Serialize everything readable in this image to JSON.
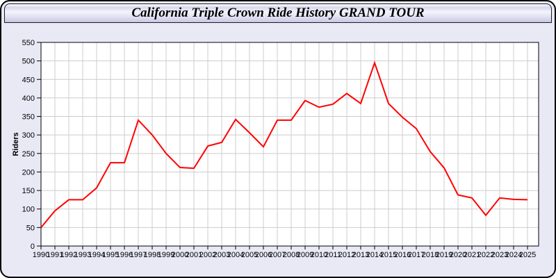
{
  "header": {
    "title": "California Triple Crown Ride History GRAND TOUR"
  },
  "colors": {
    "window_bg": "#E9E9F6",
    "window_border": "#000000",
    "plot_bg": "#FFFFFF",
    "plot_border": "#000000",
    "grid": "#CCCCCC",
    "line": "#FF0000",
    "text": "#000000"
  },
  "chart_data": {
    "type": "line",
    "title": "California Triple Crown Ride History GRAND TOUR",
    "xlabel": "",
    "ylabel": "Riders",
    "ylim": [
      0,
      550
    ],
    "ytick_step": 50,
    "grid": true,
    "legend_position": "none",
    "x": [
      1990,
      1991,
      1992,
      1993,
      1994,
      1995,
      1996,
      1997,
      1998,
      1999,
      2000,
      2001,
      2002,
      2003,
      2004,
      2005,
      2006,
      2007,
      2008,
      2009,
      2010,
      2011,
      2012,
      2013,
      2014,
      2015,
      2016,
      2017,
      2018,
      2019,
      2020,
      2021,
      2022,
      2023,
      2024,
      2025
    ],
    "series": [
      {
        "name": "Riders",
        "color": "#FF0000",
        "values": [
          50,
          95,
          125,
          125,
          157,
          225,
          225,
          340,
          300,
          250,
          212,
          210,
          270,
          280,
          342,
          306,
          268,
          340,
          340,
          393,
          375,
          383,
          412,
          385,
          495,
          385,
          348,
          317,
          255,
          211,
          138,
          130,
          83,
          130,
          126,
          125
        ]
      }
    ]
  }
}
